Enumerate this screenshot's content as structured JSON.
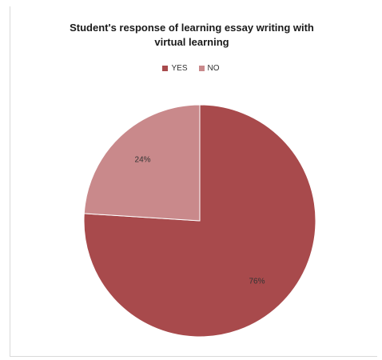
{
  "chart_data": {
    "type": "pie",
    "title": "Student's response of learning essay writing with virtual learning",
    "title_lines": [
      "Student's response of learning essay writing with",
      "virtual learning"
    ],
    "legend_position": "top",
    "series": [
      {
        "name": "YES",
        "value": 76,
        "label": "76%",
        "color": "#a84a4c"
      },
      {
        "name": "NO",
        "value": 24,
        "label": "24%",
        "color": "#c9898b"
      }
    ]
  }
}
